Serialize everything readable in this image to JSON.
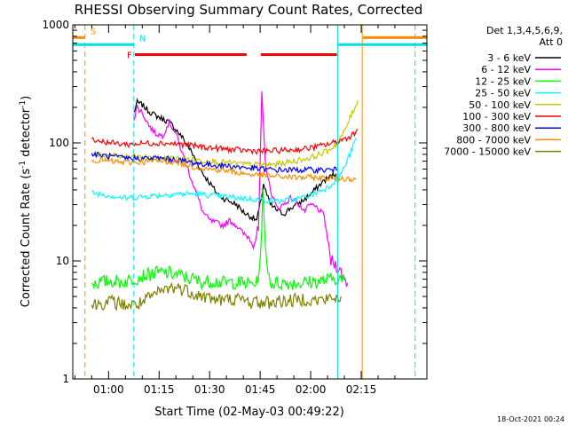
{
  "chart_data": {
    "type": "line",
    "title": "RHESSI Observing Summary Count Rates, Corrected",
    "xlabel": "Start Time (02-May-03 00:49:22)",
    "ylabel": "Corrected Count Rate (s",
    "ylabel_sup1": "-1",
    "ylabel_mid": " detector",
    "ylabel_sup2": "-1",
    "ylabel_end": ")",
    "ylim": [
      1,
      1000
    ],
    "yscale": "log",
    "xlim_min": [
      49.37,
      154.5
    ],
    "x_ticks": [
      {
        "v": 60,
        "label": "01:00"
      },
      {
        "v": 75,
        "label": "01:15"
      },
      {
        "v": 90,
        "label": "01:30"
      },
      {
        "v": 105,
        "label": "01:45"
      },
      {
        "v": 120,
        "label": "02:00"
      },
      {
        "v": 135,
        "label": "02:15"
      }
    ],
    "y_ticks": [
      {
        "v": 1,
        "label": "1"
      },
      {
        "v": 10,
        "label": "10"
      },
      {
        "v": 100,
        "label": "100"
      },
      {
        "v": 1000,
        "label": "1000"
      }
    ],
    "legend": {
      "header1": "Det 1,3,4,5,6,9,",
      "header2": "Att 0",
      "entries": [
        {
          "label": "3 - 6 keV",
          "color": "#000000"
        },
        {
          "label": "6 - 12 keV",
          "color": "#ff00ff"
        },
        {
          "label": "12 - 25 keV",
          "color": "#00ff00"
        },
        {
          "label": "25 - 50 keV",
          "color": "#00ffff"
        },
        {
          "label": "50 - 100 keV",
          "color": "#c8c800"
        },
        {
          "label": "100 - 300 keV",
          "color": "#ff0000"
        },
        {
          "label": "300 - 800 keV",
          "color": "#0000ff"
        },
        {
          "label": "800 - 7000 keV",
          "color": "#ff8c00"
        },
        {
          "label": "7000 - 15000 keV",
          "color": "#808000"
        }
      ]
    },
    "flags": [
      {
        "label": "S",
        "color": "#ff8c00",
        "x_range": [
          49.37,
          53.0
        ],
        "level": 780,
        "vline": 53.0,
        "vline_dash": true
      },
      {
        "label": "N",
        "color": "#00e0e0",
        "x_range": [
          49.37,
          67.5
        ],
        "level": 680,
        "vline": 67.5,
        "vline_dash": true
      },
      {
        "label": "F",
        "color": "#ff0000",
        "x_range": [
          67.8,
          101.0
        ],
        "level": 560,
        "gap_to": [
          105.2,
          127.8
        ]
      }
    ],
    "flag_right": [
      {
        "color": "#00e0e0",
        "x_range": [
          128.2,
          154.5
        ],
        "level": 680
      },
      {
        "color": "#ff8c00",
        "x_range": [
          135.5,
          154.5
        ],
        "level": 780
      }
    ],
    "vlines": [
      {
        "x": 128.0,
        "color": "#00e0e0",
        "dash": false
      },
      {
        "x": 135.3,
        "color": "#ff8c00",
        "dash": false
      },
      {
        "x": 151.0,
        "color": "#00e0e0",
        "dash": true
      }
    ],
    "series": [
      {
        "name": "3 - 6 keV",
        "color": "#000000",
        "x": [
          67.5,
          68.5,
          70,
          72,
          74,
          76,
          78,
          80,
          82,
          84,
          86,
          88,
          90,
          92,
          94,
          96,
          98,
          100,
          102,
          104,
          105,
          106,
          107,
          108,
          110,
          112,
          114,
          116,
          118,
          120,
          122,
          124,
          126,
          127.5
        ],
        "y": [
          180,
          220,
          210,
          185,
          170,
          160,
          150,
          130,
          110,
          90,
          70,
          55,
          46,
          38,
          34,
          32,
          30,
          26,
          24,
          22,
          30,
          45,
          36,
          30,
          27,
          25,
          28,
          30,
          33,
          37,
          42,
          48,
          52,
          55
        ]
      },
      {
        "name": "6 - 12 keV",
        "color": "#ff00ff",
        "x": [
          67.5,
          68.5,
          70,
          72,
          74,
          76,
          78,
          80,
          82,
          84,
          86,
          88,
          90,
          92,
          94,
          96,
          98,
          100,
          101.5,
          103,
          104.5,
          105.5,
          106.5,
          108,
          110,
          112,
          114,
          116,
          118,
          120,
          122,
          124,
          126,
          128,
          130,
          131
        ],
        "y": [
          160,
          200,
          180,
          140,
          120,
          115,
          150,
          120,
          80,
          55,
          38,
          26,
          22,
          21,
          20,
          22,
          20,
          17,
          16,
          14,
          18,
          260,
          70,
          40,
          28,
          30,
          34,
          32,
          26,
          30,
          28,
          24,
          10,
          9,
          7,
          6.5
        ]
      },
      {
        "name": "12 - 25 keV",
        "color": "#00ff00",
        "x": [
          55,
          58,
          61,
          64,
          67,
          70,
          73,
          76,
          79,
          82,
          85,
          88,
          91,
          94,
          97,
          100,
          102,
          104,
          105,
          105.8,
          106.6,
          108,
          112,
          116,
          120,
          124,
          128,
          130
        ],
        "y": [
          6.5,
          6.6,
          6.8,
          6.6,
          7.0,
          7.5,
          7.8,
          8.0,
          7.8,
          7.4,
          7.0,
          6.6,
          6.8,
          6.5,
          6.6,
          6.5,
          6.4,
          6.5,
          9.5,
          38,
          12,
          6.5,
          6.5,
          6.5,
          6.6,
          6.8,
          7.2,
          6.8
        ]
      },
      {
        "name": "25 - 50 keV",
        "color": "#00ffff",
        "x": [
          55,
          60,
          65,
          70,
          75,
          80,
          85,
          90,
          95,
          100,
          105,
          110,
          115,
          120,
          125,
          128,
          130,
          132,
          133.5
        ],
        "y": [
          38,
          36,
          34,
          35,
          36,
          37,
          37,
          36,
          35,
          34,
          33,
          32,
          33,
          36,
          42,
          50,
          62,
          85,
          110
        ]
      },
      {
        "name": "50 - 100 keV",
        "color": "#c8c800",
        "x": [
          55,
          60,
          65,
          70,
          75,
          80,
          85,
          90,
          95,
          100,
          105,
          110,
          115,
          120,
          125,
          128,
          130,
          132,
          134
        ],
        "y": [
          80,
          78,
          76,
          75,
          74,
          74,
          72,
          70,
          68,
          66,
          65,
          66,
          70,
          75,
          85,
          100,
          125,
          170,
          230
        ]
      },
      {
        "name": "100 - 300 keV",
        "color": "#ff0000",
        "x": [
          55,
          58,
          62,
          66,
          70,
          74,
          78,
          82,
          86,
          90,
          94,
          98,
          102,
          106,
          110,
          114,
          118,
          122,
          126,
          128,
          130,
          132,
          134
        ],
        "y": [
          108,
          103,
          99,
          97,
          99,
          100,
          99,
          97,
          94,
          91,
          89,
          87,
          86,
          85,
          86,
          87,
          89,
          93,
          99,
          103,
          108,
          115,
          130
        ]
      },
      {
        "name": "300 - 800 keV",
        "color": "#0000ff",
        "x": [
          55,
          60,
          65,
          70,
          75,
          80,
          85,
          90,
          95,
          100,
          105,
          110,
          115,
          120,
          125,
          128
        ],
        "y": [
          80,
          77,
          74,
          74,
          74,
          72,
          68,
          65,
          64,
          62,
          60,
          59,
          59,
          59,
          59,
          59
        ]
      },
      {
        "name": "800 - 7000 keV",
        "color": "#ff8c00",
        "x": [
          55,
          60,
          65,
          70,
          75,
          80,
          85,
          90,
          95,
          100,
          105,
          110,
          115,
          120,
          125,
          130,
          133.5
        ],
        "y": [
          72,
          70,
          68,
          69,
          70,
          69,
          63,
          60,
          58,
          55,
          53,
          52,
          51,
          51,
          50,
          50,
          50
        ]
      },
      {
        "name": "7000 - 15000 keV",
        "color": "#808000",
        "x": [
          55,
          58,
          61,
          64,
          67,
          70,
          73,
          76,
          79,
          82,
          85,
          88,
          91,
          94,
          97,
          100,
          103,
          106,
          109,
          112,
          115,
          118,
          121,
          124,
          127,
          129
        ],
        "y": [
          4.2,
          4.4,
          4.5,
          4.3,
          4.2,
          4.4,
          5.0,
          5.6,
          6.0,
          5.8,
          5.4,
          5.0,
          4.8,
          4.6,
          4.8,
          4.6,
          4.5,
          4.4,
          4.5,
          4.6,
          4.6,
          4.8,
          4.6,
          4.7,
          4.8,
          5.0
        ]
      }
    ]
  },
  "footer": {
    "timestamp": "18-Oct-2021 00:24"
  }
}
